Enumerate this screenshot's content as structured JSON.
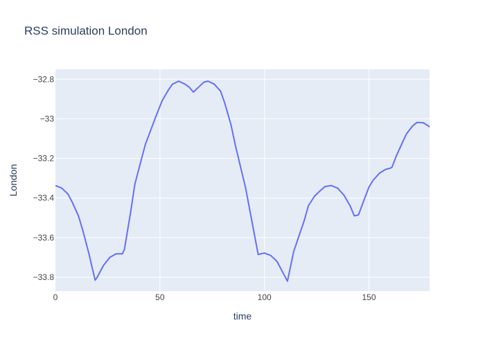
{
  "chart_data": {
    "type": "line",
    "title": "RSS simulation London",
    "xlabel": "time",
    "ylabel": "London",
    "xlim": [
      0,
      179
    ],
    "ylim": [
      -33.87,
      -32.75
    ],
    "grid": true,
    "legend": "none",
    "colors": {
      "plot_bg": "#e5ecf6",
      "grid": "#ffffff",
      "line": "#636efa",
      "text": "#2a3f5f",
      "tick_text": "#444444"
    },
    "x_ticks": [
      {
        "value": 0,
        "label": "0"
      },
      {
        "value": 50,
        "label": "50"
      },
      {
        "value": 100,
        "label": "100"
      },
      {
        "value": 150,
        "label": "150"
      }
    ],
    "y_ticks": [
      {
        "value": -32.8,
        "label": "−32.8"
      },
      {
        "value": -33.0,
        "label": "−33"
      },
      {
        "value": -33.2,
        "label": "−33.2"
      },
      {
        "value": -33.4,
        "label": "−33.4"
      },
      {
        "value": -33.6,
        "label": "−33.6"
      },
      {
        "value": -33.8,
        "label": "−33.8"
      }
    ],
    "series": [
      {
        "values": [
          [
            0,
            -33.337
          ],
          [
            3,
            -33.35
          ],
          [
            6,
            -33.38
          ],
          [
            8,
            -33.42
          ],
          [
            11,
            -33.49
          ],
          [
            13,
            -33.56
          ],
          [
            16,
            -33.68
          ],
          [
            19,
            -33.815
          ],
          [
            20,
            -33.8
          ],
          [
            23,
            -33.74
          ],
          [
            26,
            -33.7
          ],
          [
            29,
            -33.682
          ],
          [
            32,
            -33.682
          ],
          [
            33,
            -33.66
          ],
          [
            36,
            -33.47
          ],
          [
            38,
            -33.33
          ],
          [
            43,
            -33.13
          ],
          [
            48,
            -32.99
          ],
          [
            51,
            -32.91
          ],
          [
            54,
            -32.855
          ],
          [
            56,
            -32.825
          ],
          [
            59,
            -32.81
          ],
          [
            62,
            -32.825
          ],
          [
            64,
            -32.84
          ],
          [
            66,
            -32.865
          ],
          [
            69,
            -32.835
          ],
          [
            71,
            -32.815
          ],
          [
            73,
            -32.81
          ],
          [
            76,
            -32.825
          ],
          [
            79,
            -32.86
          ],
          [
            81,
            -32.92
          ],
          [
            84,
            -33.03
          ],
          [
            86,
            -33.13
          ],
          [
            91,
            -33.35
          ],
          [
            97,
            -33.685
          ],
          [
            100,
            -33.678
          ],
          [
            103,
            -33.69
          ],
          [
            106,
            -33.72
          ],
          [
            109,
            -33.78
          ],
          [
            111,
            -33.82
          ],
          [
            114,
            -33.67
          ],
          [
            119,
            -33.515
          ],
          [
            121,
            -33.44
          ],
          [
            124,
            -33.39
          ],
          [
            127,
            -33.36
          ],
          [
            129,
            -33.342
          ],
          [
            132,
            -33.337
          ],
          [
            135,
            -33.35
          ],
          [
            138,
            -33.385
          ],
          [
            141,
            -33.44
          ],
          [
            143,
            -33.49
          ],
          [
            145,
            -33.485
          ],
          [
            148,
            -33.4
          ],
          [
            150,
            -33.345
          ],
          [
            152,
            -33.31
          ],
          [
            155,
            -33.275
          ],
          [
            158,
            -33.255
          ],
          [
            160,
            -33.25
          ],
          [
            161,
            -33.245
          ],
          [
            163,
            -33.19
          ],
          [
            166,
            -33.12
          ],
          [
            168,
            -33.075
          ],
          [
            171,
            -33.035
          ],
          [
            173,
            -33.018
          ],
          [
            176,
            -33.02
          ],
          [
            179,
            -33.04
          ],
          [
            182,
            -33.09
          ]
        ]
      }
    ]
  }
}
